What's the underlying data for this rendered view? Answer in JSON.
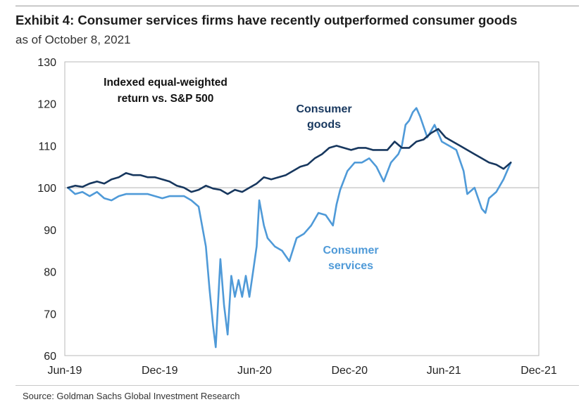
{
  "header": {
    "title": "Exhibit 4: Consumer services firms have recently outperformed consumer goods",
    "subtitle": "as of October 8, 2021"
  },
  "footer": {
    "source": "Source: Goldman Sachs Global Investment Research"
  },
  "chart_data": {
    "type": "line",
    "title": "Exhibit 4: Consumer services firms have recently outperformed consumer goods",
    "subtitle": "as of October 8, 2021",
    "xlabel": "",
    "ylabel": "",
    "ylim": [
      60,
      130
    ],
    "yticks": [
      60,
      70,
      80,
      90,
      100,
      110,
      120,
      130
    ],
    "xlim": [
      "2019-06-01",
      "2021-12-01"
    ],
    "xticks": [
      {
        "date": "2019-06-01",
        "label": "Jun-19"
      },
      {
        "date": "2019-12-01",
        "label": "Dec-19"
      },
      {
        "date": "2020-06-01",
        "label": "Jun-20"
      },
      {
        "date": "2020-12-01",
        "label": "Dec-20"
      },
      {
        "date": "2021-06-01",
        "label": "Jun-21"
      },
      {
        "date": "2021-12-01",
        "label": "Dec-21"
      }
    ],
    "reference_line": 100,
    "grid": false,
    "annotation": "Indexed equal-weighted return vs. S&P 500",
    "series": [
      {
        "name": "Consumer goods",
        "color": "#17375e",
        "points": [
          [
            "2019-06-07",
            100
          ],
          [
            "2019-06-21",
            100.5
          ],
          [
            "2019-07-05",
            100.2
          ],
          [
            "2019-07-19",
            101
          ],
          [
            "2019-08-02",
            101.5
          ],
          [
            "2019-08-16",
            101
          ],
          [
            "2019-08-30",
            102
          ],
          [
            "2019-09-13",
            102.5
          ],
          [
            "2019-09-27",
            103.5
          ],
          [
            "2019-10-11",
            103
          ],
          [
            "2019-10-25",
            103
          ],
          [
            "2019-11-08",
            102.5
          ],
          [
            "2019-11-22",
            102.5
          ],
          [
            "2019-12-06",
            102
          ],
          [
            "2019-12-20",
            101.5
          ],
          [
            "2020-01-03",
            100.5
          ],
          [
            "2020-01-17",
            100
          ],
          [
            "2020-01-31",
            99
          ],
          [
            "2020-02-14",
            99.5
          ],
          [
            "2020-02-28",
            100.5
          ],
          [
            "2020-03-13",
            99.8
          ],
          [
            "2020-03-27",
            99.5
          ],
          [
            "2020-04-10",
            98.5
          ],
          [
            "2020-04-24",
            99.5
          ],
          [
            "2020-05-08",
            99
          ],
          [
            "2020-05-22",
            100
          ],
          [
            "2020-06-05",
            101
          ],
          [
            "2020-06-19",
            102.5
          ],
          [
            "2020-07-03",
            102
          ],
          [
            "2020-07-17",
            102.5
          ],
          [
            "2020-07-31",
            103
          ],
          [
            "2020-08-14",
            104
          ],
          [
            "2020-08-28",
            105
          ],
          [
            "2020-09-11",
            105.5
          ],
          [
            "2020-09-25",
            107
          ],
          [
            "2020-10-09",
            108
          ],
          [
            "2020-10-23",
            109.5
          ],
          [
            "2020-11-06",
            110
          ],
          [
            "2020-11-20",
            109.5
          ],
          [
            "2020-12-04",
            109
          ],
          [
            "2020-12-18",
            109.5
          ],
          [
            "2021-01-01",
            109.5
          ],
          [
            "2021-01-15",
            109
          ],
          [
            "2021-01-29",
            109
          ],
          [
            "2021-02-12",
            109
          ],
          [
            "2021-02-26",
            111
          ],
          [
            "2021-03-12",
            109.5
          ],
          [
            "2021-03-26",
            109.5
          ],
          [
            "2021-04-09",
            111
          ],
          [
            "2021-04-23",
            111.5
          ],
          [
            "2021-05-07",
            113
          ],
          [
            "2021-05-21",
            114
          ],
          [
            "2021-06-04",
            112
          ],
          [
            "2021-06-18",
            111
          ],
          [
            "2021-07-02",
            110
          ],
          [
            "2021-07-16",
            109
          ],
          [
            "2021-07-30",
            108
          ],
          [
            "2021-08-13",
            107
          ],
          [
            "2021-08-27",
            106
          ],
          [
            "2021-09-10",
            105.5
          ],
          [
            "2021-09-24",
            104.5
          ],
          [
            "2021-10-08",
            106
          ]
        ]
      },
      {
        "name": "Consumer services",
        "color": "#4f9ad8",
        "points": [
          [
            "2019-06-07",
            100
          ],
          [
            "2019-06-21",
            98.5
          ],
          [
            "2019-07-05",
            99
          ],
          [
            "2019-07-19",
            98
          ],
          [
            "2019-08-02",
            99
          ],
          [
            "2019-08-16",
            97.5
          ],
          [
            "2019-08-30",
            97
          ],
          [
            "2019-09-13",
            98
          ],
          [
            "2019-09-27",
            98.5
          ],
          [
            "2019-10-11",
            98.5
          ],
          [
            "2019-10-25",
            98.5
          ],
          [
            "2019-11-08",
            98.5
          ],
          [
            "2019-11-22",
            98
          ],
          [
            "2019-12-06",
            97.5
          ],
          [
            "2019-12-20",
            98
          ],
          [
            "2020-01-03",
            98
          ],
          [
            "2020-01-17",
            98
          ],
          [
            "2020-01-31",
            97
          ],
          [
            "2020-02-14",
            95.5
          ],
          [
            "2020-02-28",
            86
          ],
          [
            "2020-03-06",
            76
          ],
          [
            "2020-03-13",
            67
          ],
          [
            "2020-03-18",
            62
          ],
          [
            "2020-03-27",
            83
          ],
          [
            "2020-04-03",
            72
          ],
          [
            "2020-04-10",
            65
          ],
          [
            "2020-04-17",
            79
          ],
          [
            "2020-04-24",
            74
          ],
          [
            "2020-05-01",
            78
          ],
          [
            "2020-05-08",
            74
          ],
          [
            "2020-05-15",
            79
          ],
          [
            "2020-05-22",
            74
          ],
          [
            "2020-05-29",
            80
          ],
          [
            "2020-06-05",
            86
          ],
          [
            "2020-06-10",
            97
          ],
          [
            "2020-06-19",
            91
          ],
          [
            "2020-06-26",
            88
          ],
          [
            "2020-07-10",
            86
          ],
          [
            "2020-07-24",
            85
          ],
          [
            "2020-08-07",
            82.5
          ],
          [
            "2020-08-21",
            88
          ],
          [
            "2020-09-04",
            89
          ],
          [
            "2020-09-18",
            91
          ],
          [
            "2020-10-02",
            94
          ],
          [
            "2020-10-16",
            93.5
          ],
          [
            "2020-10-30",
            91
          ],
          [
            "2020-11-06",
            96
          ],
          [
            "2020-11-13",
            99.5
          ],
          [
            "2020-11-27",
            104
          ],
          [
            "2020-12-11",
            106
          ],
          [
            "2020-12-25",
            106
          ],
          [
            "2021-01-08",
            107
          ],
          [
            "2021-01-22",
            105
          ],
          [
            "2021-02-05",
            101.5
          ],
          [
            "2021-02-19",
            106
          ],
          [
            "2021-03-05",
            108
          ],
          [
            "2021-03-12",
            110
          ],
          [
            "2021-03-19",
            115
          ],
          [
            "2021-03-26",
            116
          ],
          [
            "2021-04-02",
            118
          ],
          [
            "2021-04-09",
            119
          ],
          [
            "2021-04-16",
            117
          ],
          [
            "2021-04-30",
            112
          ],
          [
            "2021-05-14",
            115
          ],
          [
            "2021-05-28",
            111
          ],
          [
            "2021-06-11",
            110
          ],
          [
            "2021-06-25",
            109
          ],
          [
            "2021-07-09",
            104
          ],
          [
            "2021-07-16",
            98.5
          ],
          [
            "2021-07-30",
            100
          ],
          [
            "2021-08-13",
            95
          ],
          [
            "2021-08-20",
            94
          ],
          [
            "2021-08-27",
            97.5
          ],
          [
            "2021-09-10",
            99
          ],
          [
            "2021-09-24",
            102
          ],
          [
            "2021-10-08",
            106
          ]
        ]
      }
    ],
    "labels": [
      {
        "text": "Consumer",
        "series": 0
      },
      {
        "text": "goods",
        "series": 0
      },
      {
        "text": "Consumer",
        "series": 1
      },
      {
        "text": "services",
        "series": 1
      }
    ]
  }
}
